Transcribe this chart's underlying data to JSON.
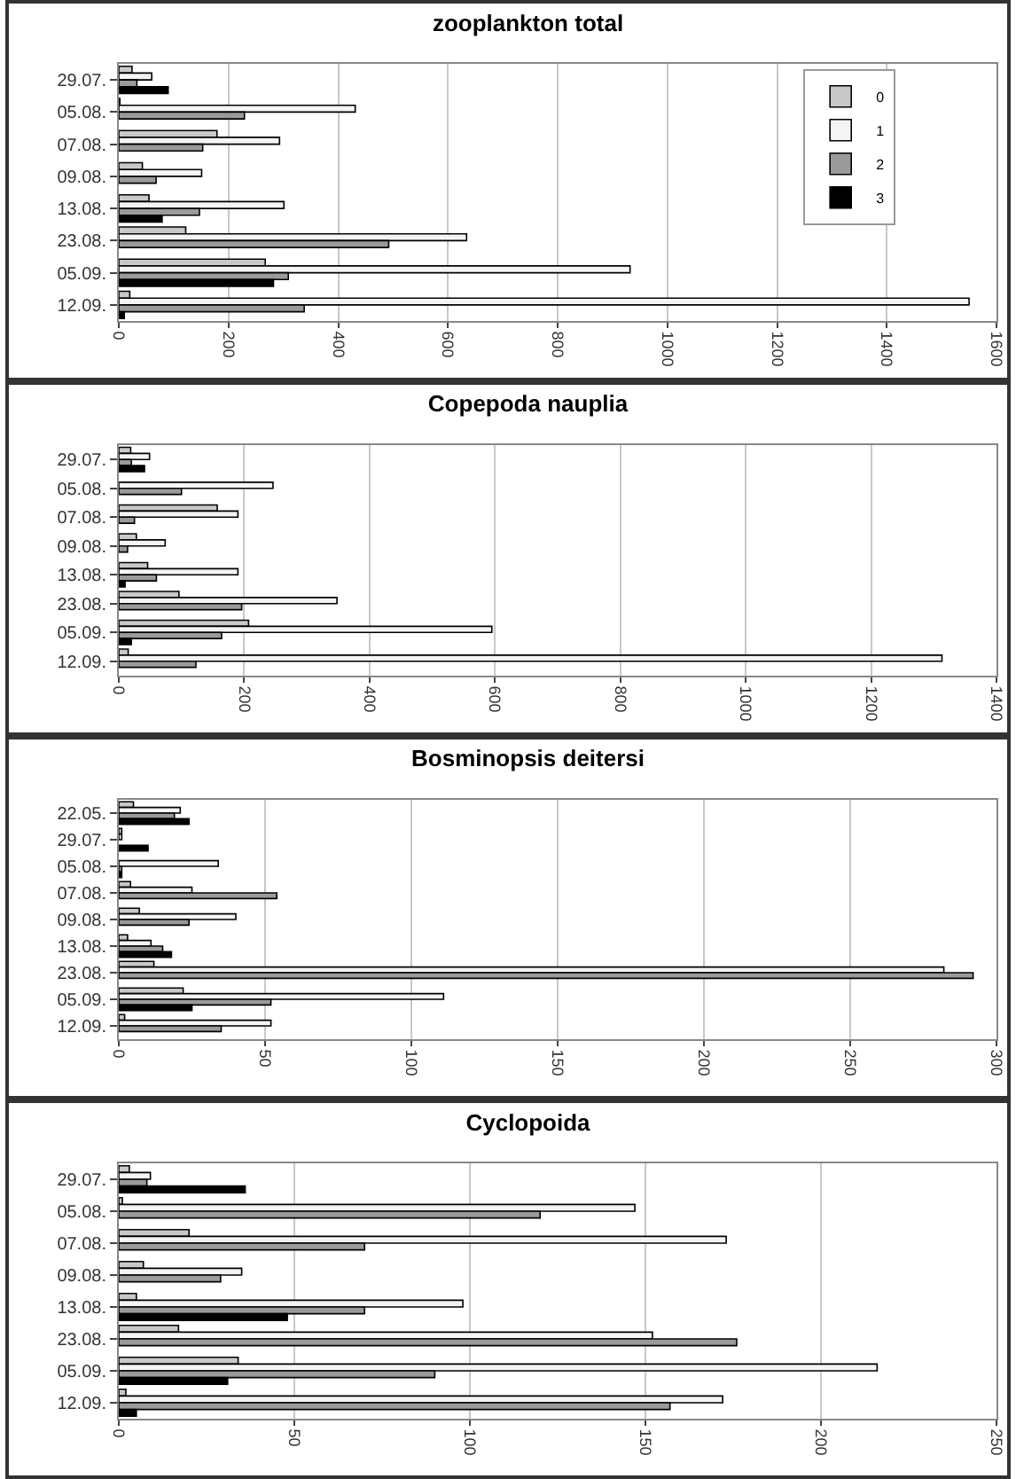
{
  "chart_data": [
    {
      "type": "bar",
      "orientation": "horizontal",
      "title": "zooplankton total",
      "categories": [
        "29.07.",
        "05.08.",
        "07.08.",
        "09.08.",
        "13.08.",
        "23.08.",
        "05.09.",
        "12.09."
      ],
      "xlim": [
        0,
        1600
      ],
      "xticks": [
        0,
        200,
        400,
        600,
        800,
        1000,
        1200,
        1400,
        1600
      ],
      "grid": "x",
      "legend": "top right",
      "series": [
        {
          "name": "0",
          "color": "#c8c8c8",
          "values": [
            24,
            2,
            179,
            43,
            55,
            122,
            267,
            20
          ]
        },
        {
          "name": "1",
          "color": "#f4f4f4",
          "values": [
            60,
            431,
            293,
            151,
            301,
            634,
            932,
            1550
          ]
        },
        {
          "name": "2",
          "color": "#9a9a9a",
          "values": [
            33,
            229,
            153,
            68,
            147,
            492,
            309,
            338
          ]
        },
        {
          "name": "3",
          "color": "#000000",
          "values": [
            90,
            null,
            null,
            null,
            79,
            null,
            282,
            10
          ]
        }
      ]
    },
    {
      "type": "bar",
      "orientation": "horizontal",
      "title": "Copepoda nauplia",
      "categories": [
        "29.07.",
        "05.08.",
        "07.08.",
        "09.08.",
        "13.08.",
        "23.08.",
        "05.09.",
        "12.09."
      ],
      "xlim": [
        0,
        1400
      ],
      "xticks": [
        0,
        200,
        400,
        600,
        800,
        1000,
        1200,
        1400
      ],
      "grid": "x",
      "series": [
        {
          "color": "#c8c8c8",
          "values": [
            19,
            null,
            157,
            28,
            46,
            96,
            207,
            15
          ]
        },
        {
          "color": "#f4f4f4",
          "values": [
            49,
            246,
            190,
            74,
            190,
            348,
            595,
            1313
          ]
        },
        {
          "color": "#9a9a9a",
          "values": [
            20,
            100,
            25,
            14,
            60,
            196,
            164,
            123
          ]
        },
        {
          "color": "#000000",
          "values": [
            41,
            null,
            null,
            null,
            10,
            null,
            20,
            null
          ]
        }
      ]
    },
    {
      "type": "bar",
      "orientation": "horizontal",
      "title": "Bosminopsis deitersi",
      "categories": [
        "22.05.",
        "29.07.",
        "05.08.",
        "07.08.",
        "09.08.",
        "13.08.",
        "23.08.",
        "05.09.",
        "12.09."
      ],
      "xlim": [
        0,
        300
      ],
      "xticks": [
        0,
        50,
        100,
        150,
        200,
        250,
        300
      ],
      "grid": "x",
      "series": [
        {
          "color": "#c8c8c8",
          "values": [
            5,
            1,
            null,
            4,
            7,
            3,
            12,
            22,
            2
          ]
        },
        {
          "color": "#f4f4f4",
          "values": [
            21,
            1,
            34,
            25,
            40,
            11,
            282,
            111,
            52
          ]
        },
        {
          "color": "#9a9a9a",
          "values": [
            19,
            null,
            1,
            54,
            24,
            15,
            292,
            52,
            35
          ]
        },
        {
          "color": "#000000",
          "values": [
            24,
            10,
            1,
            null,
            null,
            18,
            null,
            25,
            null
          ]
        }
      ]
    },
    {
      "type": "bar",
      "orientation": "horizontal",
      "title": "Cyclopoida",
      "categories": [
        "29.07.",
        "05.08.",
        "07.08.",
        "09.08.",
        "13.08.",
        "23.08.",
        "05.09.",
        "12.09."
      ],
      "xlim": [
        0,
        250
      ],
      "xticks": [
        0,
        50,
        100,
        150,
        200,
        250
      ],
      "grid": "x",
      "series": [
        {
          "color": "#c8c8c8",
          "values": [
            3,
            1,
            20,
            7,
            5,
            17,
            34,
            2
          ]
        },
        {
          "color": "#f4f4f4",
          "values": [
            9,
            147,
            173,
            35,
            98,
            152,
            216,
            172
          ]
        },
        {
          "color": "#9a9a9a",
          "values": [
            8,
            120,
            70,
            29,
            70,
            176,
            90,
            157
          ]
        },
        {
          "color": "#000000",
          "values": [
            36,
            null,
            null,
            null,
            48,
            null,
            31,
            5
          ]
        }
      ]
    }
  ]
}
